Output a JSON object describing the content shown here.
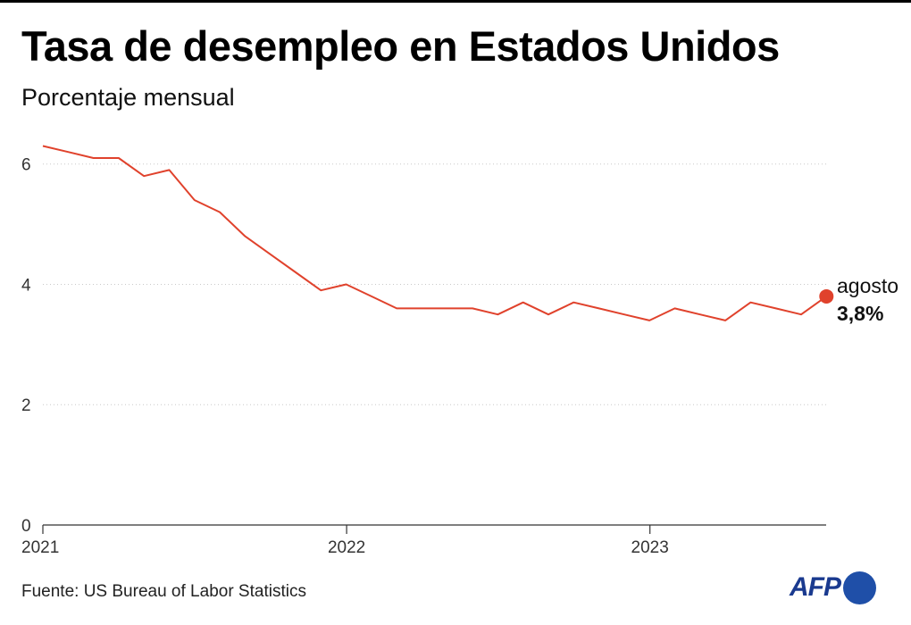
{
  "title": "Tasa de desempleo en Estados Unidos",
  "subtitle": "Porcentaje mensual",
  "source": "Fuente: US Bureau of Labor Statistics",
  "logo": {
    "text": "AFP",
    "text_color": "#1a3a8f",
    "dot_color": "#1f4fa8"
  },
  "colors": {
    "line": "#e0422c",
    "grid": "#c8c8c8",
    "axis": "#333333"
  },
  "chart_data": {
    "type": "line",
    "title": "Tasa de desempleo en Estados Unidos",
    "subtitle": "Porcentaje mensual",
    "ylim": [
      0,
      6.5
    ],
    "y_ticks": [
      0,
      2,
      4,
      6
    ],
    "x_ticks": [
      "2021",
      "2022",
      "2023"
    ],
    "grid": "horizontal dotted",
    "series": [
      {
        "x": [
          "2021-01",
          "2021-02",
          "2021-03",
          "2021-04",
          "2021-05",
          "2021-06",
          "2021-07",
          "2021-08",
          "2021-09",
          "2021-10",
          "2021-11",
          "2021-12",
          "2022-01",
          "2022-02",
          "2022-03",
          "2022-04",
          "2022-05",
          "2022-06",
          "2022-07",
          "2022-08",
          "2022-09",
          "2022-10",
          "2022-11",
          "2022-12",
          "2023-01",
          "2023-02",
          "2023-03",
          "2023-04",
          "2023-05",
          "2023-06",
          "2023-07",
          "2023-08"
        ],
        "values": [
          6.3,
          6.2,
          6.1,
          6.1,
          5.8,
          5.9,
          5.4,
          5.2,
          4.8,
          4.5,
          4.2,
          3.9,
          4.0,
          3.8,
          3.6,
          3.6,
          3.6,
          3.6,
          3.5,
          3.7,
          3.5,
          3.7,
          3.6,
          3.5,
          3.4,
          3.6,
          3.5,
          3.4,
          3.7,
          3.6,
          3.5,
          3.8
        ]
      }
    ],
    "end_annotation": {
      "label": "agosto",
      "value": "3,8%"
    }
  }
}
